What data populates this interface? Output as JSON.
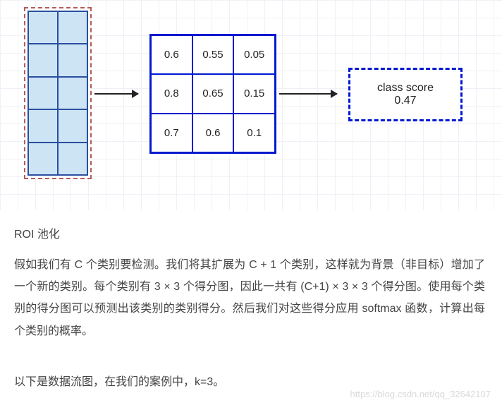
{
  "diagram": {
    "bg_grid_color": "#eef1f5",
    "input": {
      "cols": 2,
      "rows": 5,
      "cell_fill": "#cde4f5",
      "cell_border": "#2a4fa0",
      "outline_dash_color": "#b35c5c"
    },
    "score_grid": {
      "cols": 3,
      "rows": 3,
      "border_color": "#0019d0",
      "cells": [
        "0.6",
        "0.55",
        "0.05",
        "0.8",
        "0.65",
        "0.15",
        "0.7",
        "0.6",
        "0.1"
      ]
    },
    "score_box": {
      "border_color": "#0019d0",
      "label": "class score",
      "value": "0.47"
    },
    "arrows": {
      "color": "#222"
    }
  },
  "text": {
    "caption": "ROI 池化",
    "para1": "假如我们有 C 个类别要检测。我们将其扩展为 C + 1 个类别，这样就为背景（非目标）增加了一个新的类别。每个类别有 3 × 3 个得分图，因此一共有 (C+1) × 3 × 3 个得分图。使用每个类别的得分图可以预测出该类别的类别得分。然后我们对这些得分应用 softmax 函数，计算出每个类别的概率。",
    "para2": "以下是数据流图，在我们的案例中，k=3。",
    "watermark": "https://blog.csdn.net/qq_32642107"
  }
}
